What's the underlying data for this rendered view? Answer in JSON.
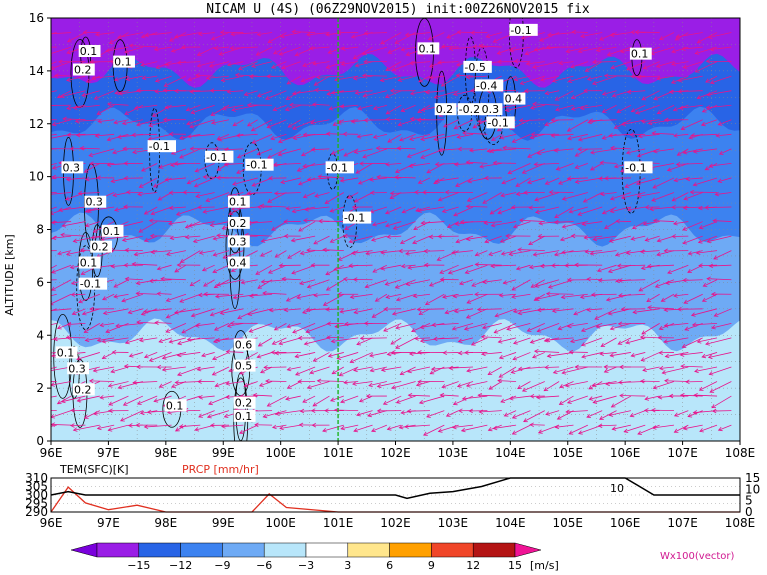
{
  "title": "NICAM U (4S) (06Z29NOV2015) init:00Z26NOV2015 fix",
  "chart_data": [
    {
      "type": "heatmap",
      "title": "NICAM U (4S) (06Z29NOV2015) init:00Z26NOV2015 fix",
      "xlabel": "",
      "ylabel": "ALTITUDE [km]",
      "x_ticks": [
        "96E",
        "97E",
        "98E",
        "99E",
        "100E",
        "101E",
        "102E",
        "103E",
        "104E",
        "105E",
        "106E",
        "107E",
        "108E"
      ],
      "y_ticks": [
        "0",
        "2",
        "4",
        "6",
        "8",
        "10",
        "12",
        "14",
        "16"
      ],
      "xlim": [
        96,
        108
      ],
      "ylim": [
        0,
        16
      ],
      "grid": true,
      "vline_lon": 101,
      "u_levels_by_altitude": [
        {
          "z": 15.0,
          "u": -15
        },
        {
          "z": 13.0,
          "u": -12
        },
        {
          "z": 11.0,
          "u": -9
        },
        {
          "z": 9.0,
          "u": -9
        },
        {
          "z": 7.0,
          "u": -6
        },
        {
          "z": 5.0,
          "u": -6
        },
        {
          "z": 3.0,
          "u": -3
        },
        {
          "z": 1.0,
          "u": -3
        }
      ],
      "contour_labels": [
        {
          "lon": 96.5,
          "z": 14.6,
          "text": "0.1"
        },
        {
          "lon": 97.1,
          "z": 14.2,
          "text": "0.1"
        },
        {
          "lon": 96.4,
          "z": 13.9,
          "text": "0.2"
        },
        {
          "lon": 97.7,
          "z": 11.0,
          "text": "-0.1"
        },
        {
          "lon": 98.7,
          "z": 10.6,
          "text": "-0.1"
        },
        {
          "lon": 99.4,
          "z": 10.3,
          "text": "-0.1"
        },
        {
          "lon": 96.2,
          "z": 10.2,
          "text": "0.3"
        },
        {
          "lon": 96.6,
          "z": 8.9,
          "text": "0.3"
        },
        {
          "lon": 96.9,
          "z": 7.8,
          "text": "0.1"
        },
        {
          "lon": 96.7,
          "z": 7.2,
          "text": "0.2"
        },
        {
          "lon": 96.5,
          "z": 6.6,
          "text": "0.1"
        },
        {
          "lon": 96.5,
          "z": 5.8,
          "text": "-0.1"
        },
        {
          "lon": 99.1,
          "z": 8.9,
          "text": "0.1"
        },
        {
          "lon": 99.1,
          "z": 8.1,
          "text": "0.2"
        },
        {
          "lon": 99.1,
          "z": 7.4,
          "text": "0.3"
        },
        {
          "lon": 99.1,
          "z": 6.6,
          "text": "0.4"
        },
        {
          "lon": 99.2,
          "z": 3.5,
          "text": "0.6"
        },
        {
          "lon": 99.2,
          "z": 2.7,
          "text": "0.5"
        },
        {
          "lon": 99.2,
          "z": 1.3,
          "text": "0.2"
        },
        {
          "lon": 99.2,
          "z": 0.8,
          "text": "0.1"
        },
        {
          "lon": 98.0,
          "z": 1.2,
          "text": "0.1"
        },
        {
          "lon": 96.3,
          "z": 2.6,
          "text": "0.3"
        },
        {
          "lon": 96.4,
          "z": 1.8,
          "text": "0.2"
        },
        {
          "lon": 96.1,
          "z": 3.2,
          "text": "0.1"
        },
        {
          "lon": 100.8,
          "z": 10.2,
          "text": "-0.1"
        },
        {
          "lon": 101.1,
          "z": 8.3,
          "text": "-0.1"
        },
        {
          "lon": 102.4,
          "z": 14.7,
          "text": "0.1"
        },
        {
          "lon": 102.7,
          "z": 12.4,
          "text": "0.2"
        },
        {
          "lon": 103.1,
          "z": 12.4,
          "text": "-0.2"
        },
        {
          "lon": 103.5,
          "z": 12.4,
          "text": "0.3"
        },
        {
          "lon": 103.2,
          "z": 14.0,
          "text": "-0.5"
        },
        {
          "lon": 103.4,
          "z": 13.3,
          "text": "-0.4"
        },
        {
          "lon": 103.6,
          "z": 11.9,
          "text": "-0.1"
        },
        {
          "lon": 103.9,
          "z": 12.8,
          "text": "0.4"
        },
        {
          "lon": 104.0,
          "z": 15.4,
          "text": "-0.1"
        },
        {
          "lon": 106.0,
          "z": 10.2,
          "text": "-0.1"
        },
        {
          "lon": 106.1,
          "z": 14.5,
          "text": "0.1"
        }
      ]
    },
    {
      "type": "line",
      "title": "",
      "labels": [
        "TEM(SFC)[K]",
        "PRCP [mm/hr]"
      ],
      "x": [
        96,
        96.3,
        96.6,
        97,
        97.5,
        98,
        99,
        99.5,
        99.8,
        100.1,
        101,
        102,
        102.2,
        102.6,
        103,
        103.5,
        104,
        105,
        106,
        106.5,
        107,
        108
      ],
      "series": [
        {
          "name": "TEM(SFC)[K]",
          "values": [
            300,
            302,
            300,
            300,
            300,
            300,
            300,
            300,
            300,
            300,
            300,
            300,
            298,
            301,
            302,
            305,
            310,
            310,
            310,
            300,
            300,
            300
          ]
        },
        {
          "name": "PRCP [mm/hr]",
          "values": [
            0,
            11,
            4,
            1,
            3,
            0,
            0,
            0,
            8,
            2,
            0,
            0,
            0,
            0,
            0,
            0,
            0,
            0,
            0,
            0,
            0,
            0
          ]
        }
      ],
      "left_y_ticks": [
        "310",
        "305",
        "300",
        "295",
        "290"
      ],
      "right_y_ticks": [
        "15",
        "10",
        "5",
        "0"
      ],
      "ylim_left": [
        290,
        310
      ],
      "ylim_right": [
        0,
        15
      ],
      "annotation": "10"
    }
  ],
  "colorbar": {
    "ticks": [
      "−15",
      "−12",
      "−9",
      "−6",
      "−3",
      "3",
      "6",
      "9",
      "12",
      "15"
    ],
    "units": "[m/s]",
    "colors": [
      "#9a1ee6",
      "#2864e6",
      "#3c82f0",
      "#6eaaf5",
      "#b8e6fa",
      "#ffffff",
      "#ffe68c",
      "#ffa000",
      "#f04628",
      "#b41414"
    ],
    "left_arrow_color": "#7a00dc",
    "right_arrow_color": "#f01496"
  },
  "vector_label": "Wx100(vector)",
  "colors": {
    "vectors": "#e6148c",
    "vline": "#1fb41f",
    "prcp": "#e03020",
    "tem": "#000000"
  }
}
